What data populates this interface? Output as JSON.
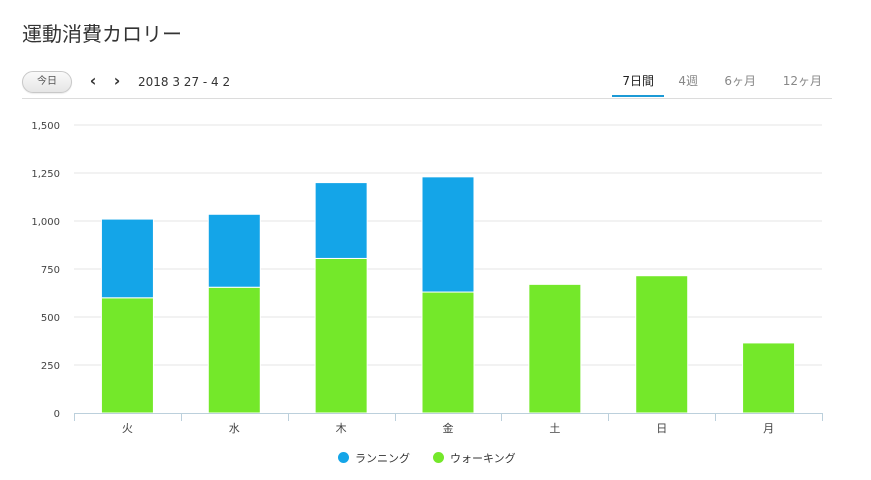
{
  "page": {
    "title": "運動消費カロリー"
  },
  "toolbar": {
    "today_label": "今日",
    "prev_icon": "‹",
    "next_icon": "›",
    "date_range": "2018 3 27 - 4 2",
    "tabs": [
      {
        "label": "7日間",
        "active": true
      },
      {
        "label": "4週",
        "active": false
      },
      {
        "label": "6ヶ月",
        "active": false
      },
      {
        "label": "12ヶ月",
        "active": false
      }
    ]
  },
  "colors": {
    "running": "#14a5e8",
    "walking": "#74e82a",
    "grid": "#e6e6e6",
    "axis": "#bcd0dc",
    "tab_accent": "#1c9ad6"
  },
  "chart_data": {
    "type": "bar",
    "stacked": true,
    "categories": [
      "火",
      "水",
      "木",
      "金",
      "土",
      "日",
      "月"
    ],
    "series": [
      {
        "name": "ウォーキング",
        "color": "#74e82a",
        "values": [
          600,
          655,
          805,
          630,
          670,
          715,
          365
        ]
      },
      {
        "name": "ランニング",
        "color": "#14a5e8",
        "values": [
          410,
          380,
          395,
          600,
          0,
          0,
          0
        ]
      }
    ],
    "ylim": [
      0,
      1500
    ],
    "yticks": [
      0,
      250,
      500,
      750,
      1000,
      1250,
      1500
    ],
    "ytick_labels": [
      "0",
      "250",
      "500",
      "750",
      "1,000",
      "1,250",
      "1,500"
    ],
    "grid": true,
    "legend_position": "bottom",
    "legend": [
      "ランニング",
      "ウォーキング"
    ]
  }
}
